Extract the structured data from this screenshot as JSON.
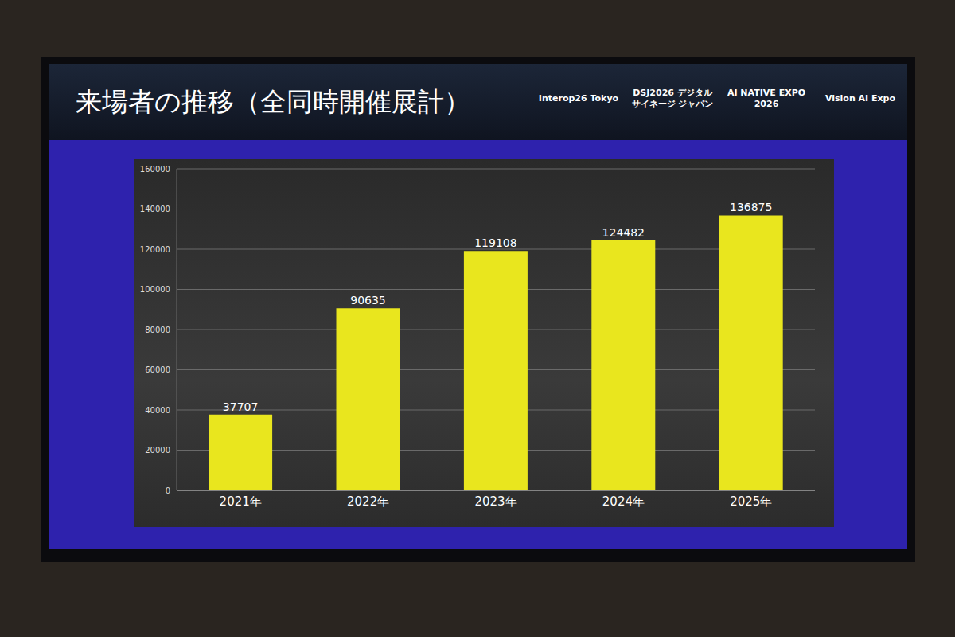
{
  "header": {
    "title": "来場者の推移（全同時開催展計）",
    "logos": [
      "Interop26 Tokyo",
      "DSJ2026 デジタルサイネージ ジャパン",
      "AI NATIVE EXPO 2026",
      "Vision AI Expo"
    ]
  },
  "chart_data": {
    "type": "bar",
    "categories": [
      "2021年",
      "2022年",
      "2023年",
      "2024年",
      "2025年"
    ],
    "values": [
      37707,
      90635,
      119108,
      124482,
      136875
    ],
    "color": "#e9e61e",
    "ylim": [
      0,
      160000
    ],
    "yticks": [
      0,
      20000,
      40000,
      60000,
      80000,
      100000,
      120000,
      140000,
      160000
    ],
    "grid": true,
    "data_labels": true
  }
}
